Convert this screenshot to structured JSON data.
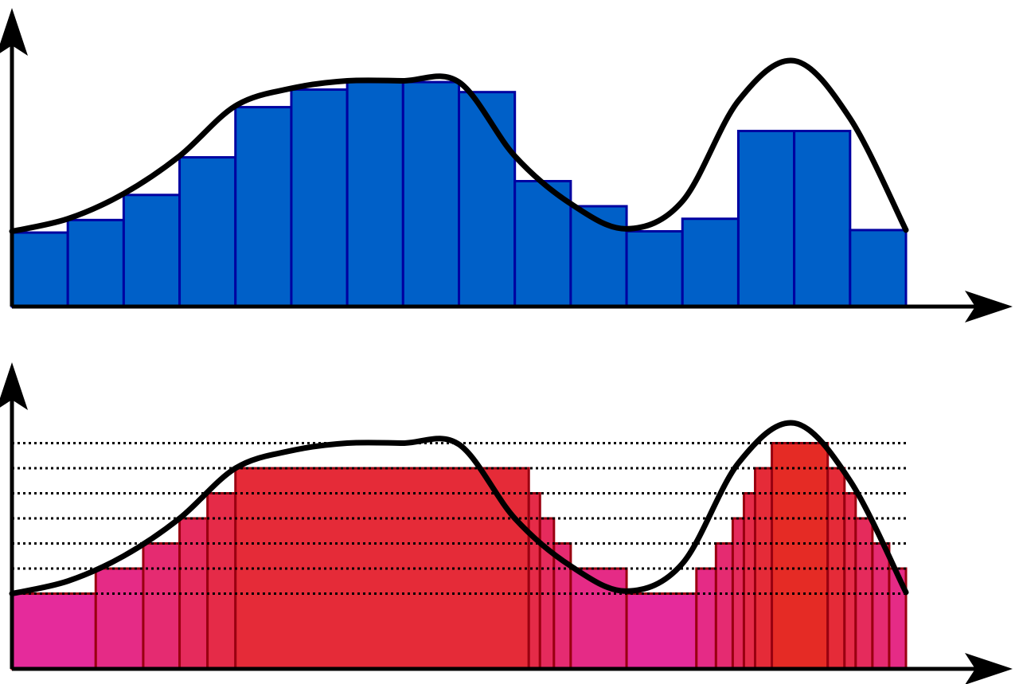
{
  "chart_data": [
    {
      "type": "bar",
      "title": "",
      "xlabel": "",
      "ylabel": "",
      "grid": false,
      "xlim": [
        0,
        16
      ],
      "ylim": [
        0,
        10
      ],
      "bar_color": "#0060C8",
      "bar_edge_color": "#0000A0",
      "curve_color": "#000000",
      "bars": [
        {
          "x0": 0,
          "x1": 1,
          "value": 2.95
        },
        {
          "x0": 1,
          "x1": 2,
          "value": 3.45
        },
        {
          "x0": 2,
          "x1": 3,
          "value": 4.45
        },
        {
          "x0": 3,
          "x1": 4,
          "value": 5.95
        },
        {
          "x0": 4,
          "x1": 5,
          "value": 7.95
        },
        {
          "x0": 5,
          "x1": 6,
          "value": 8.65
        },
        {
          "x0": 6,
          "x1": 7,
          "value": 8.95
        },
        {
          "x0": 7,
          "x1": 8,
          "value": 8.95
        },
        {
          "x0": 8,
          "x1": 9,
          "value": 8.55
        },
        {
          "x0": 9,
          "x1": 10,
          "value": 5.0
        },
        {
          "x0": 10,
          "x1": 11,
          "value": 4.0
        },
        {
          "x0": 11,
          "x1": 12,
          "value": 3.0
        },
        {
          "x0": 12,
          "x1": 13,
          "value": 3.5
        },
        {
          "x0": 13,
          "x1": 14,
          "value": 7.0
        },
        {
          "x0": 14,
          "x1": 15,
          "value": 7.0
        },
        {
          "x0": 15,
          "x1": 16,
          "value": 3.05
        }
      ],
      "curve": [
        {
          "x": 0,
          "y": 3.0
        },
        {
          "x": 1,
          "y": 3.5
        },
        {
          "x": 2,
          "y": 4.5
        },
        {
          "x": 3,
          "y": 6.0
        },
        {
          "x": 4,
          "y": 8.0
        },
        {
          "x": 5,
          "y": 8.7
        },
        {
          "x": 6,
          "y": 9.0
        },
        {
          "x": 7,
          "y": 9.0
        },
        {
          "x": 8,
          "y": 8.95
        },
        {
          "x": 9,
          "y": 6.0
        },
        {
          "x": 10,
          "y": 4.1
        },
        {
          "x": 11,
          "y": 3.1
        },
        {
          "x": 12,
          "y": 4.2
        },
        {
          "x": 13,
          "y": 8.2
        },
        {
          "x": 14,
          "y": 9.8
        },
        {
          "x": 15,
          "y": 7.5
        },
        {
          "x": 16,
          "y": 3.05
        }
      ]
    },
    {
      "type": "bar",
      "title": "",
      "xlabel": "",
      "ylabel": "",
      "grid": false,
      "xlim": [
        0,
        16
      ],
      "ylim": [
        0,
        10
      ],
      "curve_color": "#000000",
      "bar_edge_color": "#990010",
      "level_color": "#000000",
      "levels": [
        3.0,
        4.0,
        5.0,
        6.0,
        7.0,
        8.0,
        9.0
      ],
      "bars": [
        {
          "x0": 0,
          "x1": 1.5,
          "value": 3.0,
          "color": "#E52B9B"
        },
        {
          "x0": 1.5,
          "x1": 2.35,
          "value": 4.0,
          "color": "#E52B86"
        },
        {
          "x0": 2.35,
          "x1": 3.0,
          "value": 5.0,
          "color": "#E52B71"
        },
        {
          "x0": 3.0,
          "x1": 3.5,
          "value": 6.0,
          "color": "#E52B5C"
        },
        {
          "x0": 3.5,
          "x1": 4.0,
          "value": 7.0,
          "color": "#E52B48"
        },
        {
          "x0": 4.0,
          "x1": 9.25,
          "value": 8.0,
          "color": "#E52B38"
        },
        {
          "x0": 9.25,
          "x1": 9.45,
          "value": 7.0,
          "color": "#E52B48"
        },
        {
          "x0": 9.45,
          "x1": 9.7,
          "value": 6.0,
          "color": "#E52B5C"
        },
        {
          "x0": 9.7,
          "x1": 10.0,
          "value": 5.0,
          "color": "#E52B71"
        },
        {
          "x0": 10.0,
          "x1": 11.0,
          "value": 4.0,
          "color": "#E52B86"
        },
        {
          "x0": 11.0,
          "x1": 12.25,
          "value": 3.0,
          "color": "#E52B9B"
        },
        {
          "x0": 12.25,
          "x1": 12.6,
          "value": 4.0,
          "color": "#E52B86"
        },
        {
          "x0": 12.6,
          "x1": 12.9,
          "value": 5.0,
          "color": "#E52B71"
        },
        {
          "x0": 12.9,
          "x1": 13.1,
          "value": 6.0,
          "color": "#E52B5C"
        },
        {
          "x0": 13.1,
          "x1": 13.3,
          "value": 7.0,
          "color": "#E52B48"
        },
        {
          "x0": 13.3,
          "x1": 13.6,
          "value": 8.0,
          "color": "#E52B38"
        },
        {
          "x0": 13.6,
          "x1": 14.6,
          "value": 9.0,
          "color": "#E52B25"
        },
        {
          "x0": 14.6,
          "x1": 14.9,
          "value": 8.0,
          "color": "#E52B38"
        },
        {
          "x0": 14.9,
          "x1": 15.1,
          "value": 7.0,
          "color": "#E52B48"
        },
        {
          "x0": 15.1,
          "x1": 15.4,
          "value": 6.0,
          "color": "#E52B5C"
        },
        {
          "x0": 15.4,
          "x1": 15.7,
          "value": 5.0,
          "color": "#E52B71"
        },
        {
          "x0": 15.7,
          "x1": 16.0,
          "value": 4.0,
          "color": "#E52B86"
        }
      ],
      "curve": [
        {
          "x": 0,
          "y": 3.0
        },
        {
          "x": 1,
          "y": 3.5
        },
        {
          "x": 2,
          "y": 4.5
        },
        {
          "x": 3,
          "y": 6.0
        },
        {
          "x": 4,
          "y": 8.0
        },
        {
          "x": 5,
          "y": 8.7
        },
        {
          "x": 6,
          "y": 9.0
        },
        {
          "x": 7,
          "y": 9.0
        },
        {
          "x": 8,
          "y": 8.95
        },
        {
          "x": 9,
          "y": 6.0
        },
        {
          "x": 10,
          "y": 4.1
        },
        {
          "x": 11,
          "y": 3.1
        },
        {
          "x": 12,
          "y": 4.2
        },
        {
          "x": 13,
          "y": 8.2
        },
        {
          "x": 14,
          "y": 9.8
        },
        {
          "x": 15,
          "y": 7.5
        },
        {
          "x": 16,
          "y": 3.05
        }
      ]
    }
  ]
}
